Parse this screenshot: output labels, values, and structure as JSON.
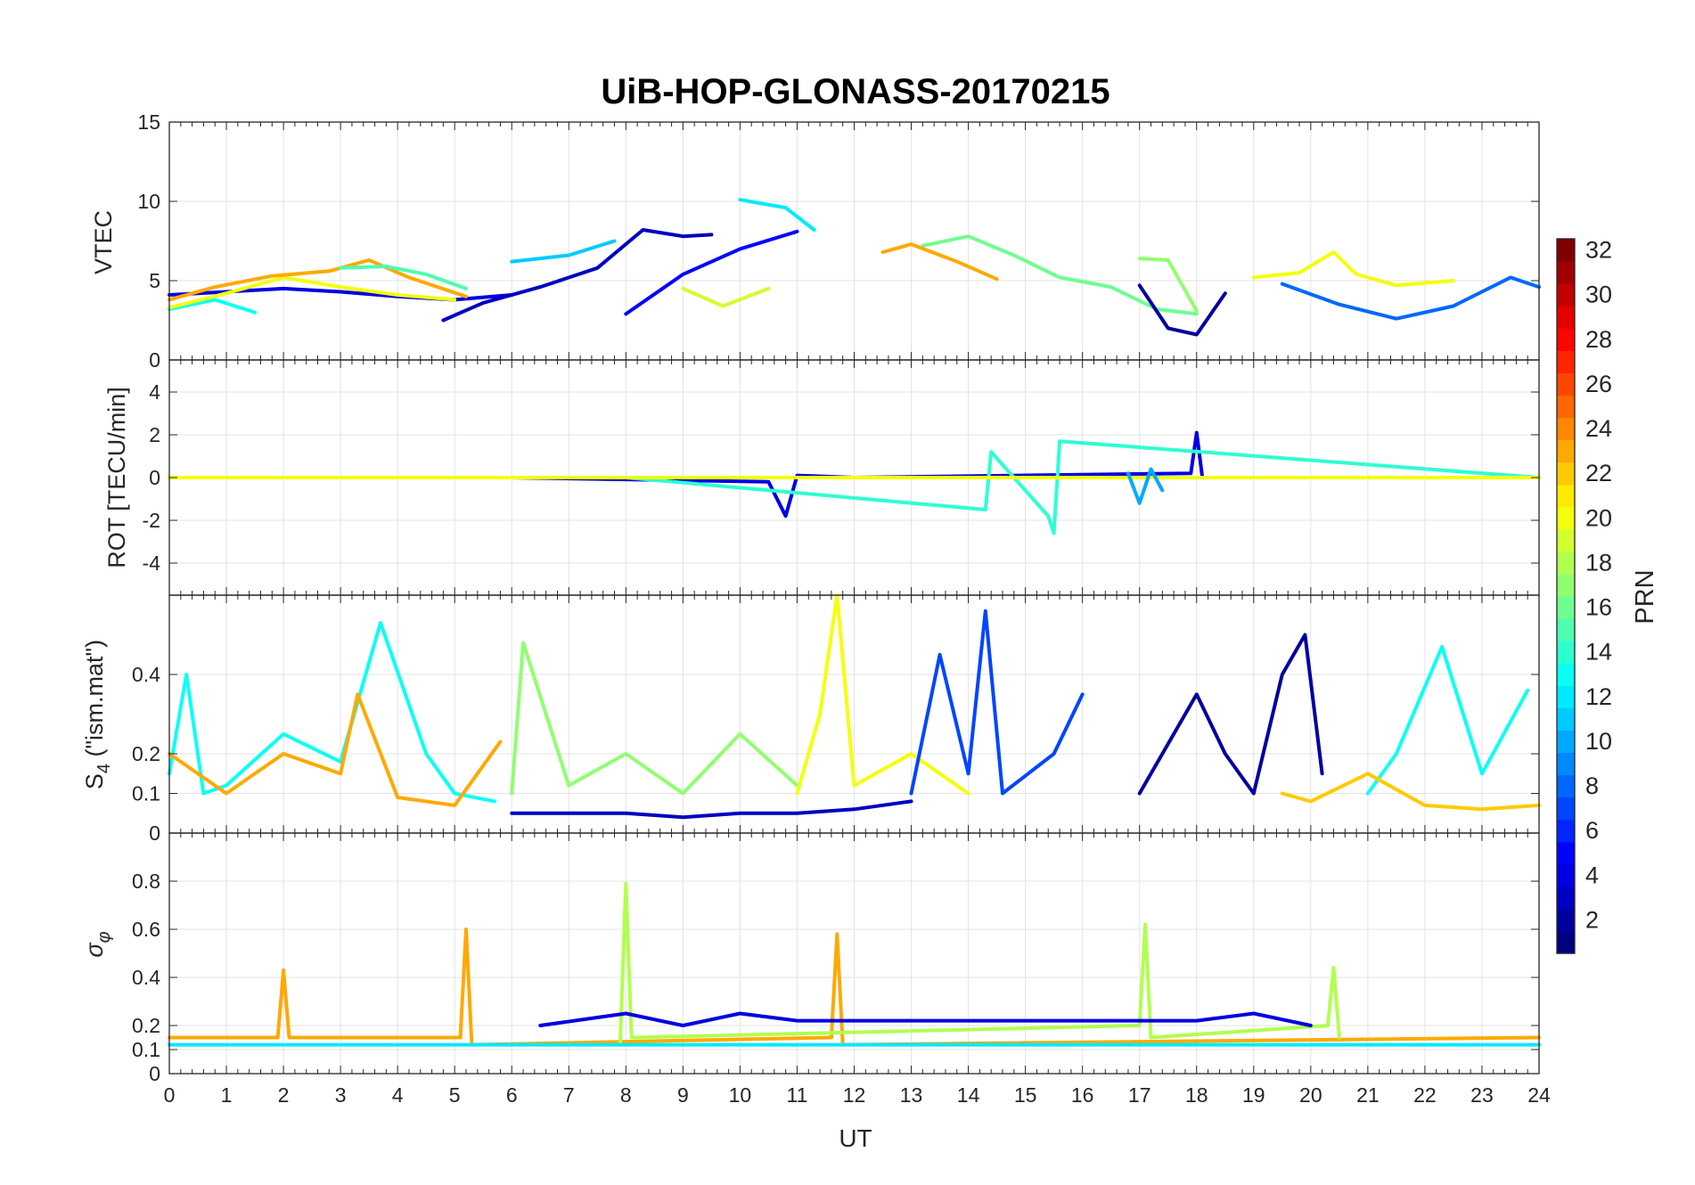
{
  "figure": {
    "title": "UiB-HOP-GLONASS-20170215",
    "xlabel": "UT"
  },
  "colorbar": {
    "label": "PRN",
    "colormap": "jet",
    "range": [
      1,
      32
    ],
    "ticks": [
      2,
      4,
      6,
      8,
      10,
      12,
      14,
      16,
      18,
      20,
      22,
      24,
      26,
      28,
      30,
      32
    ]
  },
  "chart_data": [
    {
      "type": "line",
      "panel": "vtec",
      "ylabel": "VTEC",
      "xlim": [
        0,
        24
      ],
      "ylim": [
        0,
        15
      ],
      "xticks": [
        0,
        1,
        2,
        3,
        4,
        5,
        6,
        7,
        8,
        9,
        10,
        11,
        12,
        13,
        14,
        15,
        16,
        17,
        18,
        19,
        20,
        21,
        22,
        23,
        24
      ],
      "yticks": [
        0,
        5,
        10,
        15
      ],
      "grid": true,
      "series": [
        {
          "prn": 4,
          "x": [
            0,
            1,
            2,
            3,
            4,
            5,
            6
          ],
          "y": [
            4.1,
            4.3,
            4.5,
            4.3,
            4.0,
            3.8,
            4.1
          ]
        },
        {
          "prn": 13,
          "x": [
            0,
            0.8,
            1.5
          ],
          "y": [
            3.2,
            3.8,
            3.0
          ]
        },
        {
          "prn": 20,
          "x": [
            0,
            1,
            2,
            3,
            4,
            5
          ],
          "y": [
            3.3,
            4.2,
            5.2,
            4.6,
            4.1,
            3.8
          ]
        },
        {
          "prn": 23,
          "x": [
            0,
            0.8,
            1.8,
            2.8,
            3.5,
            4.2,
            5.2
          ],
          "y": [
            3.8,
            4.6,
            5.3,
            5.6,
            6.3,
            5.2,
            4.0
          ]
        },
        {
          "prn": 15,
          "x": [
            3,
            3.8,
            4.5,
            5.2
          ],
          "y": [
            5.8,
            5.9,
            5.4,
            4.5
          ]
        },
        {
          "prn": 11,
          "x": [
            6,
            7,
            7.8
          ],
          "y": [
            6.2,
            6.6,
            7.5
          ]
        },
        {
          "prn": 3,
          "x": [
            4.8,
            5.5,
            6.5,
            7.5,
            8.3,
            9.0,
            9.5
          ],
          "y": [
            2.5,
            3.6,
            4.6,
            5.8,
            8.2,
            7.8,
            7.9
          ]
        },
        {
          "prn": 12,
          "x": [
            10,
            10.8,
            11.3
          ],
          "y": [
            10.1,
            9.6,
            8.2
          ]
        },
        {
          "prn": 5,
          "x": [
            8,
            9,
            10,
            11
          ],
          "y": [
            2.9,
            5.4,
            7.0,
            8.1
          ]
        },
        {
          "prn": 19,
          "x": [
            9.0,
            9.7,
            10.5
          ],
          "y": [
            4.5,
            3.4,
            4.5
          ]
        },
        {
          "prn": 16,
          "x": [
            13.2,
            14.0,
            14.8,
            15.6,
            16.5,
            17.3,
            18.0
          ],
          "y": [
            7.2,
            7.8,
            6.6,
            5.2,
            4.6,
            3.2,
            2.9
          ]
        },
        {
          "prn": 23,
          "x": [
            12.5,
            13.0,
            13.8,
            14.5
          ],
          "y": [
            6.8,
            7.3,
            6.2,
            5.1
          ]
        },
        {
          "prn": 2,
          "x": [
            17.0,
            17.5,
            18.0,
            18.5
          ],
          "y": [
            4.7,
            2.0,
            1.6,
            4.2
          ]
        },
        {
          "prn": 17,
          "x": [
            17.0,
            17.5,
            18.0
          ],
          "y": [
            6.4,
            6.3,
            3.1
          ]
        },
        {
          "prn": 20,
          "x": [
            19.0,
            19.8,
            20.4,
            20.8,
            21.5,
            22.5
          ],
          "y": [
            5.2,
            5.5,
            6.8,
            5.4,
            4.7,
            5.0
          ]
        },
        {
          "prn": 8,
          "x": [
            19.5,
            20.5,
            21.5,
            22.5,
            23.5,
            24
          ],
          "y": [
            4.8,
            3.5,
            2.6,
            3.4,
            5.2,
            4.6
          ]
        }
      ]
    },
    {
      "type": "line",
      "panel": "rot",
      "ylabel": "ROT [TECU/min]",
      "xlim": [
        0,
        24
      ],
      "ylim": [
        -5.5,
        5.5
      ],
      "yticks": [
        -4,
        -2,
        0,
        2,
        4
      ],
      "grid": true,
      "series": [
        {
          "prn": 4,
          "x": [
            0,
            6,
            10.5,
            10.8,
            11,
            12,
            17.9,
            18,
            18.1,
            24
          ],
          "y": [
            0,
            0,
            -0.2,
            -1.8,
            0.1,
            0,
            0.2,
            2.1,
            0,
            0
          ]
        },
        {
          "prn": 14,
          "x": [
            0,
            8,
            14.3,
            14.4,
            15.4,
            15.5,
            15.6,
            24
          ],
          "y": [
            0,
            0,
            -1.5,
            1.2,
            -1.8,
            -2.6,
            1.7,
            0
          ]
        },
        {
          "prn": 23,
          "x": [
            0,
            24
          ],
          "y": [
            0,
            0
          ]
        },
        {
          "prn": 20,
          "x": [
            0,
            24
          ],
          "y": [
            0,
            0
          ]
        },
        {
          "prn": 10,
          "x": [
            16.8,
            17.0,
            17.2,
            17.4
          ],
          "y": [
            0.2,
            -1.2,
            0.4,
            -0.6
          ]
        }
      ]
    },
    {
      "type": "line",
      "panel": "s4",
      "ylabel": "S4 (\"ism.mat\")",
      "xlim": [
        0,
        24
      ],
      "ylim": [
        0,
        0.6
      ],
      "yticks": [
        0,
        0.1,
        0.2,
        0.4
      ],
      "grid": true,
      "series": [
        {
          "prn": 13,
          "x": [
            0,
            0.3,
            0.6,
            1,
            2,
            3,
            3.7,
            4.5,
            5,
            5.7
          ],
          "y": [
            0.15,
            0.4,
            0.1,
            0.12,
            0.25,
            0.18,
            0.53,
            0.2,
            0.1,
            0.08
          ]
        },
        {
          "prn": 23,
          "x": [
            0,
            1,
            2,
            3,
            3.3,
            4,
            5,
            5.8
          ],
          "y": [
            0.2,
            0.1,
            0.2,
            0.15,
            0.35,
            0.09,
            0.07,
            0.23
          ]
        },
        {
          "prn": 17,
          "x": [
            6,
            6.2,
            6.6,
            7,
            8,
            9,
            10,
            11
          ],
          "y": [
            0.1,
            0.48,
            0.3,
            0.12,
            0.2,
            0.1,
            0.25,
            0.12
          ]
        },
        {
          "prn": 20,
          "x": [
            11,
            11.4,
            11.7,
            12,
            13,
            14
          ],
          "y": [
            0.1,
            0.3,
            0.6,
            0.12,
            0.2,
            0.1
          ]
        },
        {
          "prn": 3,
          "x": [
            6,
            6.5,
            7,
            8,
            9,
            10,
            11,
            12,
            13
          ],
          "y": [
            0.05,
            0.05,
            0.05,
            0.05,
            0.04,
            0.05,
            0.05,
            0.06,
            0.08
          ]
        },
        {
          "prn": 7,
          "x": [
            13,
            13.5,
            14,
            14.3,
            14.6,
            15.5,
            16
          ],
          "y": [
            0.1,
            0.45,
            0.15,
            0.56,
            0.1,
            0.2,
            0.35
          ]
        },
        {
          "prn": 2,
          "x": [
            17,
            18,
            18.5,
            19,
            19.5,
            19.9,
            20.2
          ],
          "y": [
            0.1,
            0.35,
            0.2,
            0.1,
            0.4,
            0.5,
            0.15
          ]
        },
        {
          "prn": 13,
          "x": [
            21,
            21.5,
            22.3,
            23,
            23.8
          ],
          "y": [
            0.1,
            0.2,
            0.47,
            0.15,
            0.36
          ]
        },
        {
          "prn": 22,
          "x": [
            19.5,
            20,
            21,
            22,
            23,
            24
          ],
          "y": [
            0.1,
            0.08,
            0.15,
            0.07,
            0.06,
            0.07
          ]
        }
      ]
    },
    {
      "type": "line",
      "panel": "sigma_phi",
      "ylabel": "σ_φ",
      "xlim": [
        0,
        24
      ],
      "ylim": [
        0,
        1
      ],
      "yticks": [
        0,
        0.1,
        0.2,
        0.4,
        0.6,
        0.8
      ],
      "grid": true,
      "series": [
        {
          "prn": 23,
          "x": [
            0,
            1.9,
            2,
            2.1,
            5.1,
            5.2,
            5.3,
            11.6,
            11.7,
            11.8,
            24
          ],
          "y": [
            0.15,
            0.15,
            0.43,
            0.15,
            0.15,
            0.6,
            0.12,
            0.15,
            0.58,
            0.12,
            0.15
          ]
        },
        {
          "prn": 18,
          "x": [
            7.9,
            8.0,
            8.1,
            17.0,
            17.1,
            17.2,
            20.3,
            20.4,
            20.5
          ],
          "y": [
            0.12,
            0.79,
            0.15,
            0.2,
            0.62,
            0.15,
            0.2,
            0.44,
            0.15
          ]
        },
        {
          "prn": 4,
          "x": [
            6.5,
            8,
            9,
            10,
            11,
            18,
            19,
            20
          ],
          "y": [
            0.2,
            0.25,
            0.2,
            0.25,
            0.22,
            0.22,
            0.25,
            0.2
          ]
        },
        {
          "prn": 12,
          "x": [
            0,
            24
          ],
          "y": [
            0.12,
            0.12
          ]
        }
      ]
    }
  ]
}
